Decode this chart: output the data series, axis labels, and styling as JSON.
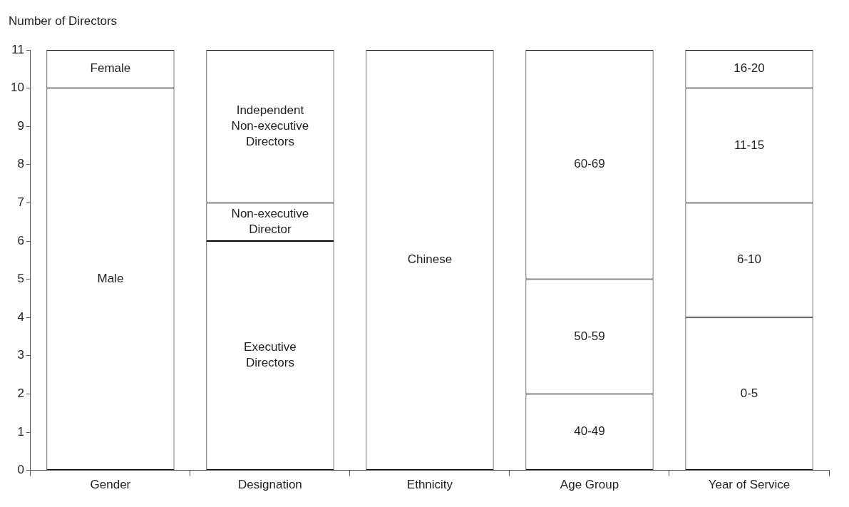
{
  "chart_data": {
    "type": "bar",
    "ylabel": "Number of Directors",
    "categories": [
      "Gender",
      "Designation",
      "Ethnicity",
      "Age Group",
      "Year of Service"
    ],
    "stacked": true,
    "ylim": [
      0,
      11
    ],
    "yticks": [
      0,
      1,
      2,
      3,
      4,
      5,
      6,
      7,
      8,
      9,
      10,
      11
    ],
    "grid": false,
    "legend": false,
    "series": [
      {
        "color": "#ffffff",
        "values": [
          10,
          6,
          11,
          2,
          4
        ],
        "value_labels": [
          "Male",
          "Executive\nDirectors",
          "Chinese",
          "40-49",
          "0-5"
        ]
      },
      {
        "color": "#ffffff",
        "values": [
          1,
          1,
          null,
          3,
          3
        ],
        "value_labels": [
          "Female",
          "Non-executive\nDirector",
          null,
          "50-59",
          "6-10"
        ]
      },
      {
        "color": "#ffffff",
        "values": [
          null,
          4,
          null,
          6,
          3
        ],
        "value_labels": [
          null,
          "Independent\nNon-executive\nDirectors",
          null,
          "60-69",
          "11-15"
        ]
      },
      {
        "color": "#ffffff",
        "values": [
          null,
          null,
          null,
          null,
          1
        ],
        "value_labels": [
          null,
          null,
          null,
          null,
          "16-20"
        ]
      }
    ]
  }
}
